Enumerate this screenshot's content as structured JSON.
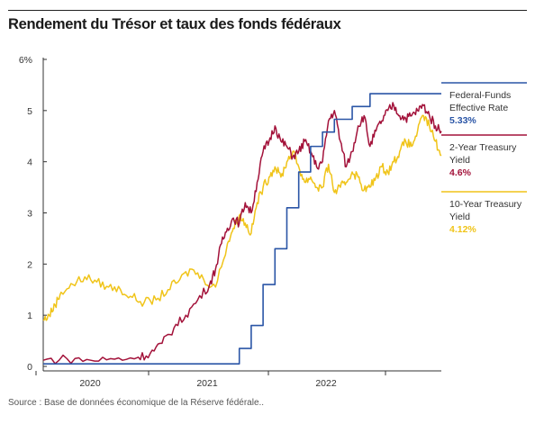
{
  "title": "Rendement du Trésor et taux des fonds fédéraux",
  "source": "Source : Base de données économique de la Réserve fédérale..",
  "chart_data": {
    "type": "line",
    "title": "Rendement du Trésor et taux des fonds fédéraux",
    "xlabel": "",
    "ylabel": "",
    "ylim": [
      0,
      6
    ],
    "x_ticks": [
      "2020",
      "2021",
      "2022"
    ],
    "y_ticks": [
      {
        "value": 6,
        "label": "6%"
      },
      {
        "value": 5,
        "label": "5"
      },
      {
        "value": 4,
        "label": "4"
      },
      {
        "value": 3,
        "label": "3"
      },
      {
        "value": 2,
        "label": "2"
      },
      {
        "value": 1,
        "label": "1"
      },
      {
        "value": 0,
        "label": "0"
      }
    ],
    "grid": false,
    "legend_position": "right",
    "series": [
      {
        "name_lines": [
          "Federal-Funds",
          "Effective Rate"
        ],
        "value_label": "5.33%",
        "color": "#2a55a6",
        "step": true,
        "x": [
          2019.6,
          2020.2,
          2020.7,
          2021.15,
          2021.25,
          2021.35,
          2021.45,
          2021.55,
          2021.65,
          2021.75,
          2021.85,
          2021.95,
          2022.05,
          2022.2,
          2022.35,
          2022.55,
          2022.95
        ],
        "y": [
          0.05,
          0.05,
          0.05,
          0.05,
          0.35,
          0.8,
          1.6,
          2.3,
          3.1,
          3.8,
          4.3,
          4.58,
          4.83,
          5.08,
          5.33,
          5.33,
          5.33
        ]
      },
      {
        "name_lines": [
          "2-Year Treasury",
          "Yield"
        ],
        "value_label": "4.6%",
        "color": "#a3123a",
        "step": false,
        "x": [
          2019.6,
          2019.8,
          2020.0,
          2020.2,
          2020.4,
          2020.5,
          2020.6,
          2020.7,
          2020.8,
          2020.9,
          2021.0,
          2021.05,
          2021.1,
          2021.15,
          2021.2,
          2021.25,
          2021.3,
          2021.35,
          2021.4,
          2021.45,
          2021.5,
          2021.55,
          2021.6,
          2021.65,
          2021.7,
          2021.75,
          2021.8,
          2021.85,
          2021.9,
          2021.95,
          2022.0,
          2022.05,
          2022.1,
          2022.15,
          2022.2,
          2022.25,
          2022.3,
          2022.35,
          2022.4,
          2022.45,
          2022.5,
          2022.55,
          2022.6,
          2022.65,
          2022.7,
          2022.75,
          2022.8,
          2022.85,
          2022.9,
          2022.95
        ],
        "y": [
          0.12,
          0.15,
          0.12,
          0.14,
          0.18,
          0.25,
          0.45,
          0.75,
          1.0,
          1.3,
          1.6,
          1.9,
          2.4,
          2.7,
          2.9,
          2.8,
          3.2,
          3.0,
          3.6,
          4.2,
          4.4,
          4.7,
          4.4,
          4.3,
          4.1,
          4.2,
          4.4,
          4.2,
          3.9,
          4.0,
          4.8,
          5.0,
          4.4,
          3.9,
          4.2,
          4.7,
          4.9,
          4.3,
          4.6,
          4.8,
          5.0,
          5.1,
          4.9,
          4.85,
          4.9,
          5.0,
          5.1,
          4.9,
          4.7,
          4.6
        ]
      },
      {
        "name_lines": [
          "10-Year Treasury",
          "Yield"
        ],
        "value_label": "4.12%",
        "color": "#f0c419",
        "step": false,
        "x": [
          2019.6,
          2019.65,
          2019.7,
          2019.75,
          2019.85,
          2019.95,
          2020.05,
          2020.15,
          2020.25,
          2020.35,
          2020.45,
          2020.55,
          2020.65,
          2020.75,
          2020.85,
          2020.95,
          2021.05,
          2021.15,
          2021.2,
          2021.25,
          2021.3,
          2021.35,
          2021.4,
          2021.45,
          2021.5,
          2021.55,
          2021.6,
          2021.65,
          2021.7,
          2021.75,
          2021.8,
          2021.85,
          2021.9,
          2021.95,
          2022.0,
          2022.05,
          2022.1,
          2022.15,
          2022.2,
          2022.25,
          2022.3,
          2022.35,
          2022.4,
          2022.45,
          2022.5,
          2022.55,
          2022.6,
          2022.65,
          2022.7,
          2022.75,
          2022.8,
          2022.85,
          2022.9,
          2022.95
        ],
        "y": [
          0.9,
          1.0,
          1.2,
          1.45,
          1.6,
          1.75,
          1.65,
          1.55,
          1.5,
          1.35,
          1.25,
          1.3,
          1.5,
          1.7,
          1.9,
          1.7,
          1.55,
          2.4,
          2.7,
          2.95,
          2.8,
          2.6,
          3.2,
          3.5,
          3.7,
          3.9,
          3.7,
          4.0,
          4.2,
          3.9,
          3.6,
          3.7,
          3.5,
          3.5,
          3.95,
          3.4,
          3.5,
          3.6,
          3.8,
          3.7,
          3.45,
          3.5,
          3.7,
          3.9,
          3.8,
          4.0,
          4.2,
          4.4,
          4.3,
          4.6,
          4.9,
          4.7,
          4.4,
          4.12
        ]
      }
    ]
  }
}
